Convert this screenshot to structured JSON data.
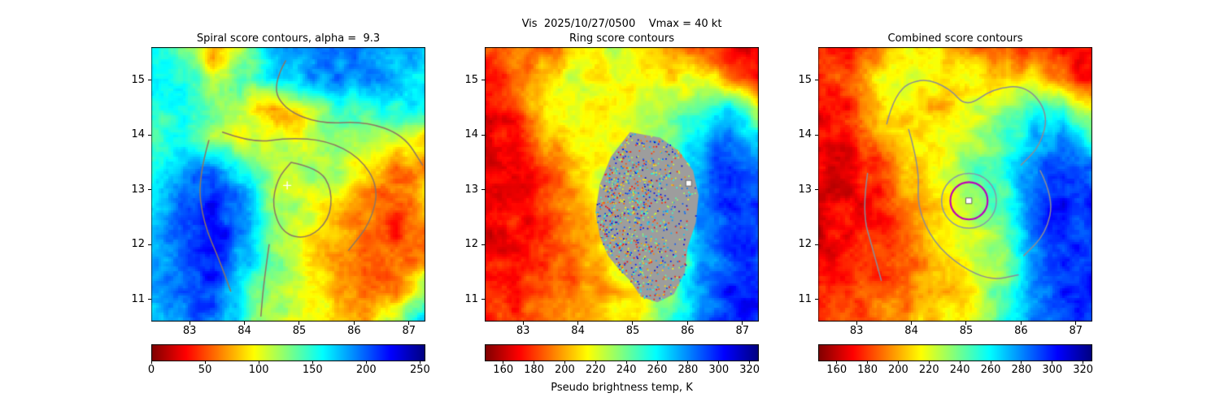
{
  "figure": {
    "suptitle": "Vis  2025/10/27/0500    Vmax = 40 kt",
    "colorbar_xlabel": "Pseudo brightness temp, K",
    "background": "#ffffff"
  },
  "chart_data": [
    {
      "id": "spiral",
      "type": "heatmap",
      "title": "Spiral score contours, alpha =  9.3",
      "xlim": [
        82.3,
        87.3
      ],
      "ylim": [
        10.6,
        15.6
      ],
      "xticks": [
        83,
        84,
        85,
        86,
        87
      ],
      "yticks": [
        11,
        12,
        13,
        14,
        15
      ],
      "colormap": "jet_r",
      "colorbar": {
        "range": [
          0,
          255
        ],
        "ticks": [
          0,
          50,
          100,
          150,
          200,
          250
        ]
      },
      "approx_grid": [
        [
          150,
          140,
          60,
          120,
          170,
          190,
          195,
          190,
          185,
          180
        ],
        [
          155,
          150,
          120,
          140,
          165,
          180,
          190,
          185,
          175,
          165
        ],
        [
          150,
          150,
          130,
          110,
          70,
          95,
          140,
          150,
          155,
          160
        ],
        [
          140,
          150,
          120,
          100,
          110,
          105,
          115,
          125,
          110,
          85
        ],
        [
          150,
          185,
          200,
          150,
          108,
          115,
          120,
          88,
          62,
          75
        ],
        [
          158,
          200,
          220,
          188,
          118,
          108,
          95,
          65,
          50,
          85
        ],
        [
          165,
          205,
          225,
          195,
          125,
          100,
          85,
          55,
          45,
          65
        ],
        [
          175,
          205,
          218,
          175,
          135,
          95,
          70,
          50,
          60,
          75
        ],
        [
          185,
          200,
          210,
          155,
          115,
          100,
          80,
          60,
          55,
          140
        ],
        [
          180,
          192,
          200,
          148,
          118,
          108,
          92,
          75,
          125,
          170
        ]
      ],
      "contours": {
        "color": "#8d7663",
        "paths": [
          [
            [
              84.75,
              15.35
            ],
            [
              84.5,
              14.9
            ],
            [
              84.75,
              14.45
            ],
            [
              85.4,
              14.2
            ],
            [
              86.2,
              14.25
            ],
            [
              86.9,
              14.0
            ],
            [
              87.25,
              13.45
            ]
          ],
          [
            [
              83.6,
              14.05
            ],
            [
              84.15,
              13.85
            ],
            [
              84.8,
              13.95
            ],
            [
              85.5,
              13.9
            ],
            [
              86.1,
              13.6
            ],
            [
              86.45,
              13.05
            ],
            [
              86.3,
              12.4
            ],
            [
              85.9,
              11.9
            ]
          ],
          [
            [
              84.85,
              13.5
            ],
            [
              85.35,
              13.4
            ],
            [
              85.6,
              13.0
            ],
            [
              85.55,
              12.45
            ],
            [
              85.15,
              12.1
            ],
            [
              84.7,
              12.2
            ],
            [
              84.5,
              12.7
            ],
            [
              84.6,
              13.2
            ],
            [
              84.85,
              13.5
            ]
          ],
          [
            [
              83.35,
              13.9
            ],
            [
              83.15,
              13.2
            ],
            [
              83.25,
              12.4
            ],
            [
              83.55,
              11.7
            ],
            [
              83.75,
              11.15
            ]
          ],
          [
            [
              84.45,
              12.0
            ],
            [
              84.35,
              11.3
            ],
            [
              84.3,
              10.7
            ]
          ]
        ]
      },
      "markers": [
        {
          "type": "plus",
          "x": 84.78,
          "y": 13.08,
          "color": "#ffffff"
        }
      ]
    },
    {
      "id": "ring",
      "type": "heatmap",
      "title": "Ring score contours",
      "xlim": [
        82.3,
        87.3
      ],
      "ylim": [
        10.6,
        15.6
      ],
      "xticks": [
        83,
        84,
        85,
        86,
        87
      ],
      "yticks": [
        11,
        12,
        13,
        14,
        15
      ],
      "colormap": "jet_r",
      "colorbar": {
        "range": [
          148,
          326
        ],
        "ticks": [
          160,
          180,
          200,
          220,
          240,
          260,
          280,
          300,
          320
        ]
      },
      "approx_grid": [
        [
          180,
          195,
          190,
          205,
          225,
          210,
          195,
          185,
          172,
          166
        ],
        [
          172,
          185,
          212,
          222,
          212,
          218,
          208,
          225,
          195,
          172
        ],
        [
          168,
          176,
          218,
          214,
          208,
          222,
          228,
          248,
          265,
          225
        ],
        [
          169,
          172,
          200,
          214,
          218,
          228,
          238,
          268,
          288,
          258
        ],
        [
          167,
          170,
          185,
          208,
          222,
          232,
          242,
          278,
          298,
          278
        ],
        [
          166,
          169,
          179,
          199,
          218,
          228,
          238,
          283,
          303,
          288
        ],
        [
          168,
          172,
          177,
          194,
          213,
          223,
          233,
          278,
          298,
          293
        ],
        [
          170,
          175,
          180,
          189,
          208,
          218,
          228,
          268,
          293,
          298
        ],
        [
          172,
          178,
          185,
          194,
          204,
          213,
          238,
          278,
          298,
          303
        ],
        [
          175,
          180,
          190,
          199,
          209,
          218,
          248,
          283,
          293,
          298
        ]
      ],
      "mask_region": {
        "color": "#9d9d9d",
        "polygon": [
          [
            84.95,
            14.05
          ],
          [
            85.5,
            13.95
          ],
          [
            85.85,
            13.7
          ],
          [
            86.1,
            13.35
          ],
          [
            86.2,
            12.9
          ],
          [
            86.15,
            12.4
          ],
          [
            86.0,
            11.95
          ],
          [
            85.95,
            11.5
          ],
          [
            85.75,
            11.1
          ],
          [
            85.45,
            10.95
          ],
          [
            85.15,
            11.05
          ],
          [
            84.95,
            11.35
          ],
          [
            84.75,
            11.55
          ],
          [
            84.55,
            11.8
          ],
          [
            84.4,
            12.15
          ],
          [
            84.32,
            12.6
          ],
          [
            84.4,
            13.1
          ],
          [
            84.6,
            13.6
          ],
          [
            84.95,
            14.05
          ]
        ]
      },
      "markers": [
        {
          "type": "square",
          "x": 86.02,
          "y": 13.12,
          "color": "#ffffff"
        }
      ]
    },
    {
      "id": "combined",
      "type": "heatmap",
      "title": "Combined score contours",
      "xlim": [
        82.3,
        87.3
      ],
      "ylim": [
        10.6,
        15.6
      ],
      "xticks": [
        83,
        84,
        85,
        86,
        87
      ],
      "yticks": [
        11,
        12,
        13,
        14,
        15
      ],
      "colormap": "jet_r",
      "colorbar": {
        "range": [
          148,
          326
        ],
        "ticks": [
          160,
          180,
          200,
          220,
          240,
          260,
          280,
          300,
          320
        ]
      },
      "approx_grid": [
        [
          182,
          175,
          195,
          213,
          208,
          195,
          185,
          178,
          171,
          166
        ],
        [
          174,
          184,
          213,
          222,
          208,
          213,
          203,
          213,
          188,
          171
        ],
        [
          169,
          174,
          213,
          208,
          203,
          218,
          233,
          253,
          248,
          218
        ],
        [
          167,
          171,
          194,
          208,
          213,
          223,
          243,
          273,
          283,
          248
        ],
        [
          165,
          169,
          181,
          203,
          218,
          238,
          248,
          283,
          298,
          283
        ],
        [
          164,
          167,
          177,
          196,
          213,
          233,
          243,
          288,
          303,
          293
        ],
        [
          166,
          171,
          176,
          190,
          208,
          223,
          238,
          283,
          298,
          296
        ],
        [
          169,
          175,
          181,
          188,
          203,
          216,
          233,
          273,
          293,
          298
        ],
        [
          172,
          178,
          185,
          194,
          204,
          214,
          243,
          280,
          296,
          301
        ],
        [
          175,
          181,
          191,
          200,
          210,
          220,
          250,
          284,
          294,
          298
        ]
      ],
      "contours": {
        "color": "#8b8b96",
        "paths": [
          [
            [
              83.55,
              14.2
            ],
            [
              83.7,
              14.8
            ],
            [
              84.2,
              15.05
            ],
            [
              84.7,
              14.85
            ],
            [
              85.0,
              14.5
            ],
            [
              85.5,
              14.85
            ],
            [
              86.1,
              14.9
            ],
            [
              86.5,
              14.4
            ],
            [
              86.35,
              13.8
            ],
            [
              86.0,
              13.45
            ]
          ],
          [
            [
              83.2,
              13.3
            ],
            [
              83.1,
              12.6
            ],
            [
              83.3,
              11.9
            ],
            [
              83.45,
              11.35
            ]
          ],
          [
            [
              83.95,
              14.1
            ],
            [
              84.15,
              13.4
            ],
            [
              84.1,
              12.7
            ],
            [
              84.4,
              12.05
            ],
            [
              84.9,
              11.6
            ],
            [
              85.45,
              11.35
            ],
            [
              85.95,
              11.45
            ]
          ],
          [
            [
              86.35,
              13.35
            ],
            [
              86.6,
              12.85
            ],
            [
              86.45,
              12.2
            ],
            [
              86.05,
              11.8
            ]
          ]
        ]
      },
      "markers": [
        {
          "type": "circle",
          "x": 85.05,
          "y": 12.8,
          "r": 0.5,
          "color": "#8898a8",
          "width": 1.5
        },
        {
          "type": "circle",
          "x": 85.05,
          "y": 12.8,
          "r": 0.34,
          "color": "#bb00bb",
          "width": 2.2
        },
        {
          "type": "square",
          "x": 85.05,
          "y": 12.8,
          "color": "#ffffff"
        }
      ]
    }
  ]
}
